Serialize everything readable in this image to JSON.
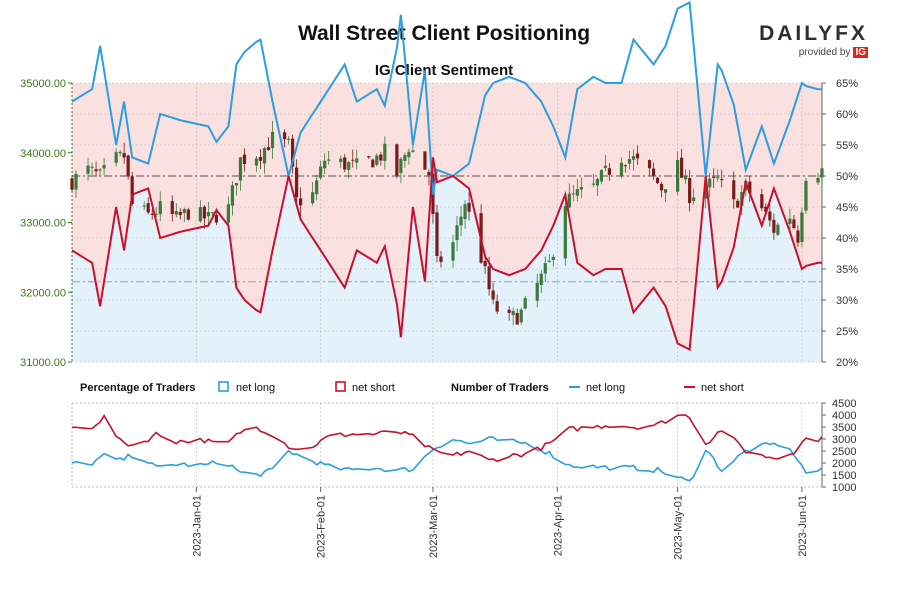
{
  "header": {
    "title": "Wall Street Client Positioning",
    "subtitle": "IG Client Sentiment",
    "brand": "DAILYFX",
    "brand_sub": "provided by",
    "brand_badge": "IG"
  },
  "legend": {
    "pct_title": "Percentage of Traders",
    "pct_long": "net long",
    "pct_short": "net short",
    "num_title": "Number of Traders",
    "num_long": "net long",
    "num_short": "net short"
  },
  "colors": {
    "long": "#2a9fdf",
    "short": "#c8102e",
    "up_candle": "#3a7a3a",
    "down_candle": "#7a1a1a",
    "price_axis": "#3a7a1a",
    "short_fill": "#fbe0e0",
    "long_fill": "#e3f1fa"
  },
  "chart_data": [
    {
      "type": "candlestick",
      "title": "Wall Street Client Positioning",
      "subtitle": "IG Client Sentiment",
      "y_left_ticks": [
        "31000.00",
        "32000.00",
        "33000.00",
        "34000.00",
        "35000.00"
      ],
      "y_left_range": [
        31000,
        35000
      ],
      "y_right_ticks": [
        "20%",
        "25%",
        "30%",
        "35%",
        "40%",
        "45%",
        "50%",
        "55%",
        "60%",
        "65%"
      ],
      "y_right_range": [
        20,
        65
      ],
      "x_ticks": [
        "2023-Jan-01",
        "2023-Feb-01",
        "2023-Mar-01",
        "2023-Apr-01",
        "2023-May-01",
        "2023-Jun-01"
      ],
      "x_range": [
        "2022-12-01",
        "2023-06-06"
      ],
      "reference_lines": [
        {
          "axis": "right",
          "value": 50
        },
        {
          "axis": "left",
          "value": 32150
        }
      ],
      "price_keypoints": [
        [
          "2022-12-01",
          33600
        ],
        [
          "2022-12-05",
          33750
        ],
        [
          "2022-12-08",
          33650
        ],
        [
          "2022-12-12",
          33900
        ],
        [
          "2022-12-14",
          33950
        ],
        [
          "2022-12-16",
          33250
        ],
        [
          "2022-12-20",
          33100
        ],
        [
          "2022-12-23",
          33200
        ],
        [
          "2022-12-27",
          33050
        ],
        [
          "2022-12-30",
          33150
        ],
        [
          "2023-01-04",
          33050
        ],
        [
          "2023-01-09",
          33200
        ],
        [
          "2023-01-12",
          33900
        ],
        [
          "2023-01-17",
          34000
        ],
        [
          "2023-01-20",
          34200
        ],
        [
          "2023-01-24",
          34100
        ],
        [
          "2023-01-26",
          33300
        ],
        [
          "2023-01-30",
          33400
        ],
        [
          "2023-02-02",
          33900
        ],
        [
          "2023-02-06",
          33850
        ],
        [
          "2023-02-10",
          33800
        ],
        [
          "2023-02-14",
          33900
        ],
        [
          "2023-02-17",
          34000
        ],
        [
          "2023-02-20",
          33700
        ],
        [
          "2023-02-23",
          34100
        ],
        [
          "2023-02-28",
          33700
        ],
        [
          "2023-03-02",
          32400
        ],
        [
          "2023-03-06",
          32700
        ],
        [
          "2023-03-09",
          33300
        ],
        [
          "2023-03-13",
          32500
        ],
        [
          "2023-03-16",
          31800
        ],
        [
          "2023-03-20",
          31600
        ],
        [
          "2023-03-23",
          31700
        ],
        [
          "2023-03-27",
          32100
        ],
        [
          "2023-03-30",
          32400
        ],
        [
          "2023-04-03",
          33300
        ],
        [
          "2023-04-06",
          33400
        ],
        [
          "2023-04-10",
          33500
        ],
        [
          "2023-04-13",
          33700
        ],
        [
          "2023-04-17",
          33950
        ],
        [
          "2023-04-20",
          33900
        ],
        [
          "2023-04-24",
          33700
        ],
        [
          "2023-04-27",
          33500
        ],
        [
          "2023-05-01",
          33800
        ],
        [
          "2023-05-04",
          33400
        ],
        [
          "2023-05-08",
          33500
        ],
        [
          "2023-05-11",
          33600
        ],
        [
          "2023-05-15",
          33250
        ],
        [
          "2023-05-18",
          33500
        ],
        [
          "2023-05-22",
          33200
        ],
        [
          "2023-05-25",
          32900
        ],
        [
          "2023-05-29",
          33100
        ],
        [
          "2023-05-31",
          32800
        ],
        [
          "2023-06-02",
          33700
        ],
        [
          "2023-06-06",
          33750
        ]
      ],
      "net_short_pct_keypoints": [
        [
          "2022-12-01",
          38
        ],
        [
          "2022-12-06",
          36
        ],
        [
          "2022-12-08",
          29
        ],
        [
          "2022-12-12",
          45
        ],
        [
          "2022-12-14",
          38
        ],
        [
          "2022-12-16",
          47
        ],
        [
          "2022-12-20",
          48
        ],
        [
          "2022-12-23",
          40
        ],
        [
          "2022-12-28",
          41
        ],
        [
          "2023-01-04",
          42
        ],
        [
          "2023-01-08",
          47
        ],
        [
          "2023-01-11",
          32
        ],
        [
          "2023-01-14",
          29
        ],
        [
          "2023-01-17",
          28
        ],
        [
          "2023-01-20",
          38
        ],
        [
          "2023-01-24",
          50
        ],
        [
          "2023-01-27",
          43
        ],
        [
          "2023-01-30",
          40
        ],
        [
          "2023-02-03",
          36
        ],
        [
          "2023-02-07",
          32
        ],
        [
          "2023-02-10",
          38
        ],
        [
          "2023-02-15",
          36
        ],
        [
          "2023-02-18",
          40
        ],
        [
          "2023-02-21",
          24
        ],
        [
          "2023-02-24",
          45
        ],
        [
          "2023-02-27",
          33
        ],
        [
          "2023-03-01",
          53
        ],
        [
          "2023-03-02",
          49
        ],
        [
          "2023-03-06",
          50
        ],
        [
          "2023-03-10",
          48
        ],
        [
          "2023-03-14",
          37
        ],
        [
          "2023-03-16",
          35
        ],
        [
          "2023-03-20",
          34
        ],
        [
          "2023-03-24",
          35
        ],
        [
          "2023-03-28",
          38
        ],
        [
          "2023-03-31",
          42
        ],
        [
          "2023-04-03",
          47
        ],
        [
          "2023-04-06",
          36
        ],
        [
          "2023-04-10",
          34
        ],
        [
          "2023-04-13",
          35
        ],
        [
          "2023-04-17",
          35
        ],
        [
          "2023-04-20",
          28
        ],
        [
          "2023-04-25",
          32
        ],
        [
          "2023-04-28",
          29
        ],
        [
          "2023-05-01",
          23
        ],
        [
          "2023-05-04",
          22
        ],
        [
          "2023-05-08",
          50
        ],
        [
          "2023-05-11",
          32
        ],
        [
          "2023-05-14",
          35
        ],
        [
          "2023-05-18",
          49
        ],
        [
          "2023-05-22",
          42
        ],
        [
          "2023-05-25",
          48
        ],
        [
          "2023-05-29",
          41
        ],
        [
          "2023-06-01",
          35
        ],
        [
          "2023-06-03",
          36
        ],
        [
          "2023-06-06",
          36
        ]
      ]
    },
    {
      "type": "line",
      "y_ticks": [
        "1000",
        "1500",
        "2000",
        "2500",
        "3000",
        "3500",
        "4000",
        "4500"
      ],
      "y_range": [
        1000,
        4500
      ],
      "series": [
        {
          "name": "net long",
          "keypoints": [
            [
              "2022-12-01",
              2000
            ],
            [
              "2022-12-05",
              1900
            ],
            [
              "2022-12-09",
              2300
            ],
            [
              "2022-12-13",
              2100
            ],
            [
              "2022-12-17",
              2400
            ],
            [
              "2022-12-22",
              1800
            ],
            [
              "2022-12-27",
              1950
            ],
            [
              "2023-01-03",
              1900
            ],
            [
              "2023-01-08",
              2100
            ],
            [
              "2023-01-12",
              1600
            ],
            [
              "2023-01-16",
              1500
            ],
            [
              "2023-01-20",
              1700
            ],
            [
              "2023-01-24",
              2500
            ],
            [
              "2023-01-28",
              2200
            ],
            [
              "2023-02-03",
              1850
            ],
            [
              "2023-02-08",
              1700
            ],
            [
              "2023-02-14",
              1800
            ],
            [
              "2023-02-20",
              1700
            ],
            [
              "2023-02-24",
              1750
            ],
            [
              "2023-03-01",
              2600
            ],
            [
              "2023-03-06",
              3000
            ],
            [
              "2023-03-10",
              2800
            ],
            [
              "2023-03-15",
              3000
            ],
            [
              "2023-03-20",
              2900
            ],
            [
              "2023-03-25",
              2800
            ],
            [
              "2023-03-30",
              2400
            ],
            [
              "2023-04-04",
              1900
            ],
            [
              "2023-04-10",
              1850
            ],
            [
              "2023-04-15",
              1800
            ],
            [
              "2023-04-20",
              1800
            ],
            [
              "2023-04-26",
              1700
            ],
            [
              "2023-05-01",
              1400
            ],
            [
              "2023-05-04",
              1200
            ],
            [
              "2023-05-08",
              2600
            ],
            [
              "2023-05-12",
              1700
            ],
            [
              "2023-05-18",
              2500
            ],
            [
              "2023-05-22",
              2700
            ],
            [
              "2023-05-26",
              2800
            ],
            [
              "2023-05-30",
              2400
            ],
            [
              "2023-06-02",
              1600
            ],
            [
              "2023-06-06",
              1700
            ]
          ]
        },
        {
          "name": "net short",
          "keypoints": [
            [
              "2022-12-01",
              3500
            ],
            [
              "2022-12-05",
              3400
            ],
            [
              "2022-12-09",
              3900
            ],
            [
              "2022-12-13",
              2900
            ],
            [
              "2022-12-17",
              2700
            ],
            [
              "2022-12-22",
              3200
            ],
            [
              "2022-12-27",
              2900
            ],
            [
              "2023-01-03",
              2950
            ],
            [
              "2023-01-08",
              2700
            ],
            [
              "2023-01-12",
              3300
            ],
            [
              "2023-01-16",
              3500
            ],
            [
              "2023-01-20",
              3200
            ],
            [
              "2023-01-24",
              2700
            ],
            [
              "2023-01-28",
              2500
            ],
            [
              "2023-02-03",
              3100
            ],
            [
              "2023-02-08",
              3200
            ],
            [
              "2023-02-14",
              3200
            ],
            [
              "2023-02-20",
              3300
            ],
            [
              "2023-02-24",
              3100
            ],
            [
              "2023-03-01",
              2500
            ],
            [
              "2023-03-06",
              2300
            ],
            [
              "2023-03-10",
              2500
            ],
            [
              "2023-03-15",
              2100
            ],
            [
              "2023-03-20",
              2300
            ],
            [
              "2023-03-25",
              2400
            ],
            [
              "2023-03-30",
              2800
            ],
            [
              "2023-04-04",
              3400
            ],
            [
              "2023-04-10",
              3500
            ],
            [
              "2023-04-15",
              3600
            ],
            [
              "2023-04-20",
              3500
            ],
            [
              "2023-04-26",
              3600
            ],
            [
              "2023-05-01",
              4000
            ],
            [
              "2023-05-04",
              3950
            ],
            [
              "2023-05-08",
              2800
            ],
            [
              "2023-05-12",
              3400
            ],
            [
              "2023-05-18",
              2500
            ],
            [
              "2023-05-22",
              2300
            ],
            [
              "2023-05-26",
              2200
            ],
            [
              "2023-05-30",
              2500
            ],
            [
              "2023-06-02",
              3000
            ],
            [
              "2023-06-06",
              3000
            ]
          ]
        }
      ]
    }
  ]
}
